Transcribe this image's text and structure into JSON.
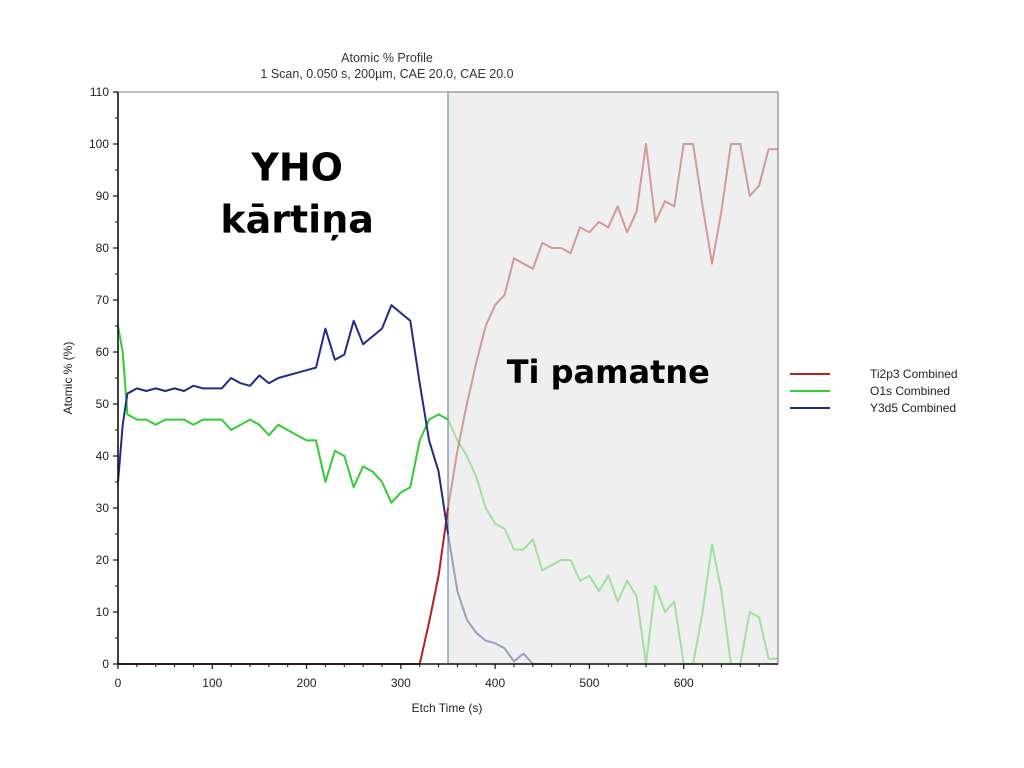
{
  "chart_data": {
    "type": "line",
    "title": "Atomic % Profile",
    "subtitle": "1 Scan,  0.050 s,  200µm,  CAE 20.0,  CAE 20.0",
    "xlabel": "Etch Time (s)",
    "ylabel": "Atomic % (%)",
    "xlim": [
      0,
      700
    ],
    "ylim": [
      0,
      110
    ],
    "x_ticks": [
      "0",
      "100",
      "200",
      "300",
      "400",
      "500",
      "600"
    ],
    "y_ticks": [
      "0",
      "10",
      "20",
      "30",
      "40",
      "50",
      "60",
      "70",
      "80",
      "90",
      "100",
      "110"
    ],
    "grid": false,
    "legend_position": "right",
    "shaded_region": {
      "x_start": 350,
      "x_end": 700,
      "color": "#efefef"
    },
    "annotations": [
      {
        "text": "YHO",
        "x": 190,
        "y": 93
      },
      {
        "text": "kārtiņa",
        "x": 190,
        "y": 83
      },
      {
        "text": "Ti pamatne",
        "x": 520,
        "y": 54
      }
    ],
    "series": [
      {
        "name": "Ti2p3 Combined",
        "color": "#b22222",
        "x": [
          0,
          50,
          100,
          150,
          200,
          250,
          300,
          320,
          330,
          340,
          350,
          360,
          370,
          380,
          390,
          400,
          410,
          420,
          430,
          440,
          450,
          460,
          470,
          480,
          490,
          500,
          510,
          520,
          530,
          540,
          550,
          560,
          570,
          580,
          590,
          600,
          610,
          620,
          630,
          640,
          650,
          660,
          670,
          680,
          690,
          700
        ],
        "values": [
          0,
          0,
          0,
          0,
          0,
          0,
          0,
          0,
          8,
          17,
          30,
          41,
          50,
          58,
          65,
          69,
          71,
          78,
          77,
          76,
          81,
          80,
          80,
          79,
          84,
          83,
          85,
          84,
          88,
          83,
          87,
          100,
          85,
          89,
          88,
          100,
          100,
          88,
          77,
          87,
          100,
          100,
          90,
          92,
          99,
          99
        ]
      },
      {
        "name": "O1s Combined",
        "color": "#33cc33",
        "x": [
          0,
          5,
          10,
          20,
          30,
          40,
          50,
          60,
          70,
          80,
          90,
          100,
          110,
          120,
          130,
          140,
          150,
          160,
          170,
          180,
          190,
          200,
          210,
          220,
          230,
          240,
          250,
          260,
          270,
          280,
          290,
          300,
          310,
          320,
          330,
          340,
          350,
          360,
          370,
          380,
          390,
          400,
          410,
          420,
          430,
          440,
          450,
          460,
          470,
          480,
          490,
          500,
          510,
          520,
          530,
          540,
          550,
          560,
          570,
          580,
          590,
          600,
          610,
          620,
          630,
          640,
          650,
          660,
          670,
          680,
          690,
          700
        ],
        "values": [
          65,
          60,
          48,
          47,
          47,
          46,
          47,
          47,
          47,
          46,
          47,
          47,
          47,
          45,
          46,
          47,
          46,
          44,
          46,
          45,
          44,
          43,
          43,
          35,
          41,
          40,
          34,
          38,
          37,
          35,
          31,
          33,
          34,
          43,
          47,
          48,
          47,
          43,
          40,
          36,
          30,
          27,
          26,
          22,
          22,
          24,
          18,
          19,
          20,
          20,
          16,
          17,
          14,
          17,
          12,
          16,
          13,
          0,
          15,
          10,
          12,
          0,
          0,
          10,
          23,
          14,
          0,
          0,
          10,
          9,
          1,
          1
        ]
      },
      {
        "name": "Y3d5 Combined",
        "color": "#1f2d8a",
        "x": [
          0,
          5,
          10,
          20,
          30,
          40,
          50,
          60,
          70,
          80,
          90,
          100,
          110,
          120,
          130,
          140,
          150,
          160,
          170,
          180,
          190,
          200,
          210,
          220,
          230,
          240,
          250,
          260,
          270,
          280,
          290,
          300,
          310,
          320,
          330,
          340,
          350,
          360,
          370,
          380,
          390,
          400,
          410,
          420,
          430,
          440,
          450,
          460
        ],
        "values": [
          35,
          46,
          52,
          53,
          52.5,
          53,
          52.5,
          53,
          52.5,
          53.5,
          53,
          53,
          53,
          55,
          54,
          53.5,
          55.5,
          54,
          55,
          55.5,
          56,
          56.5,
          57,
          64.5,
          58.5,
          59.5,
          66,
          61.5,
          63,
          64.5,
          69,
          67.5,
          66,
          54,
          43,
          37,
          25,
          14,
          8.5,
          6,
          4.5,
          4,
          3,
          0.5,
          2,
          0,
          0,
          0
        ]
      }
    ]
  }
}
